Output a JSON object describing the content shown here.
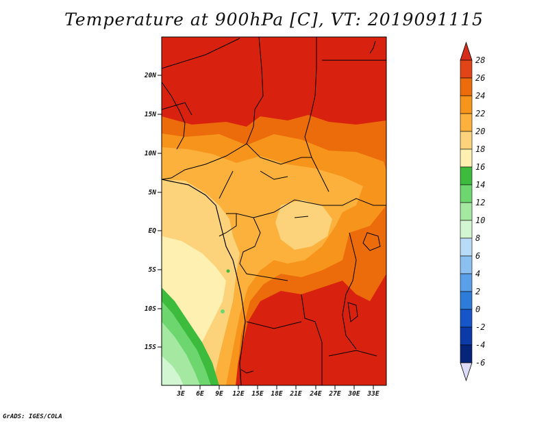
{
  "title": "Temperature at 900hPa [C], VT: 2019091115",
  "credit": "GrADS: IGES/COLA",
  "map": {
    "lat_labels": [
      "20N",
      "15N",
      "10N",
      "5N",
      "EQ",
      "5S",
      "10S",
      "15S"
    ],
    "lon_labels": [
      "3E",
      "6E",
      "9E",
      "12E",
      "15E",
      "18E",
      "21E",
      "24E",
      "27E",
      "30E",
      "33E"
    ]
  },
  "colorbar": {
    "labels": [
      "28",
      "26",
      "24",
      "22",
      "20",
      "18",
      "16",
      "14",
      "12",
      "10",
      "8",
      "6",
      "4",
      "2",
      "0",
      "-2",
      "-4",
      "-6"
    ],
    "colors": [
      "#d42d1c",
      "#e14416",
      "#ec6c0c",
      "#f7941c",
      "#fbb13c",
      "#fcd27a",
      "#fdf0b0",
      "#3dbb3d",
      "#6ed66e",
      "#a4e8a2",
      "#d2f6d2",
      "#b8dcf8",
      "#8cc0f0",
      "#5aa0e8",
      "#2c7cd8",
      "#1656c8",
      "#0c3aa8",
      "#06257a",
      "#dcdcf8"
    ]
  }
}
